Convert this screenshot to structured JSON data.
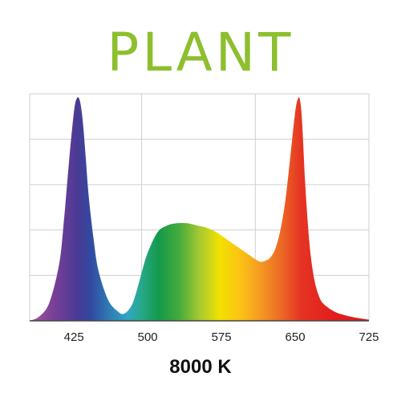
{
  "title": "PLANT",
  "caption": "8000 K",
  "colors": {
    "title": "#8dbf2e",
    "grid": "#cfcfcf",
    "axis": "#444444"
  },
  "chart_data": {
    "type": "area",
    "title": "PLANT",
    "xlabel": "",
    "ylabel": "",
    "xlim": [
      380,
      725
    ],
    "ylim": [
      0,
      1
    ],
    "grid": true,
    "x_ticks": [
      425,
      500,
      575,
      650,
      725
    ],
    "gradient": "visible spectrum (violet to red)",
    "series": [
      {
        "x": [
          380,
          390,
          400,
          410,
          415,
          420,
          425,
          428,
          431,
          434,
          437,
          440,
          445,
          450,
          460,
          470,
          475,
          480,
          485,
          490,
          495,
          500,
          510,
          520,
          530,
          540,
          550,
          560,
          570,
          580,
          590,
          600,
          610,
          615,
          620,
          625,
          630,
          635,
          640,
          645,
          650,
          653,
          655,
          657,
          660,
          663,
          666,
          670,
          675,
          680,
          690,
          700,
          710,
          725
        ],
        "y": [
          0.0,
          0.02,
          0.08,
          0.25,
          0.45,
          0.7,
          0.92,
          0.98,
          0.97,
          0.88,
          0.72,
          0.55,
          0.36,
          0.22,
          0.09,
          0.04,
          0.03,
          0.045,
          0.08,
          0.15,
          0.23,
          0.3,
          0.39,
          0.42,
          0.43,
          0.43,
          0.42,
          0.41,
          0.39,
          0.36,
          0.33,
          0.3,
          0.27,
          0.26,
          0.265,
          0.28,
          0.32,
          0.4,
          0.53,
          0.72,
          0.92,
          0.98,
          0.97,
          0.88,
          0.62,
          0.42,
          0.28,
          0.17,
          0.1,
          0.07,
          0.04,
          0.025,
          0.015,
          0.005
        ]
      }
    ]
  }
}
